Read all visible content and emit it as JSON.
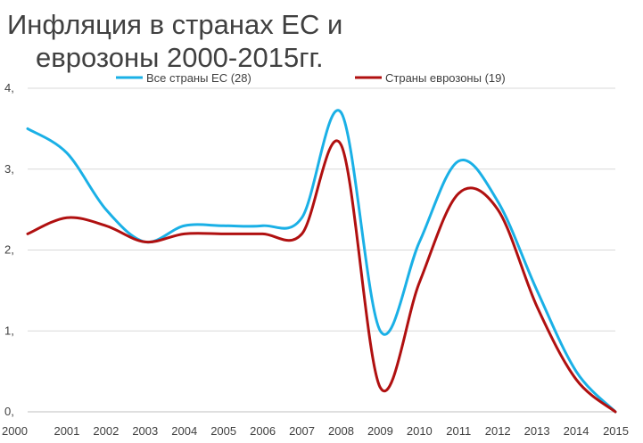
{
  "chart_data": {
    "type": "line",
    "title_lines": [
      "Инфляция в странах ЕС и",
      "еврозоны 2000-2015гг."
    ],
    "xlabel": "",
    "ylabel": "",
    "x": [
      "2000",
      "2001",
      "2002",
      "2003",
      "2004",
      "2005",
      "2006",
      "2007",
      "2008",
      "2009",
      "2010",
      "2011",
      "2012",
      "2013",
      "2014",
      "2015"
    ],
    "y_ticks": [
      "0,",
      "1,",
      "2,",
      "3,",
      "4,"
    ],
    "ylim": [
      0,
      4
    ],
    "grid": "horizontal",
    "smooth": true,
    "legend_position": "top",
    "series": [
      {
        "name": "Все страны ЕС (28)",
        "color": "#1ab0e6",
        "values": [
          3.5,
          3.2,
          2.5,
          2.1,
          2.3,
          2.3,
          2.3,
          2.4,
          3.7,
          1.0,
          2.1,
          3.1,
          2.6,
          1.5,
          0.5,
          0.0
        ]
      },
      {
        "name": "Страны еврозоны (19)",
        "color": "#b01010",
        "values": [
          2.2,
          2.4,
          2.3,
          2.1,
          2.2,
          2.2,
          2.2,
          2.2,
          3.3,
          0.3,
          1.6,
          2.7,
          2.5,
          1.3,
          0.4,
          0.0
        ]
      }
    ]
  }
}
